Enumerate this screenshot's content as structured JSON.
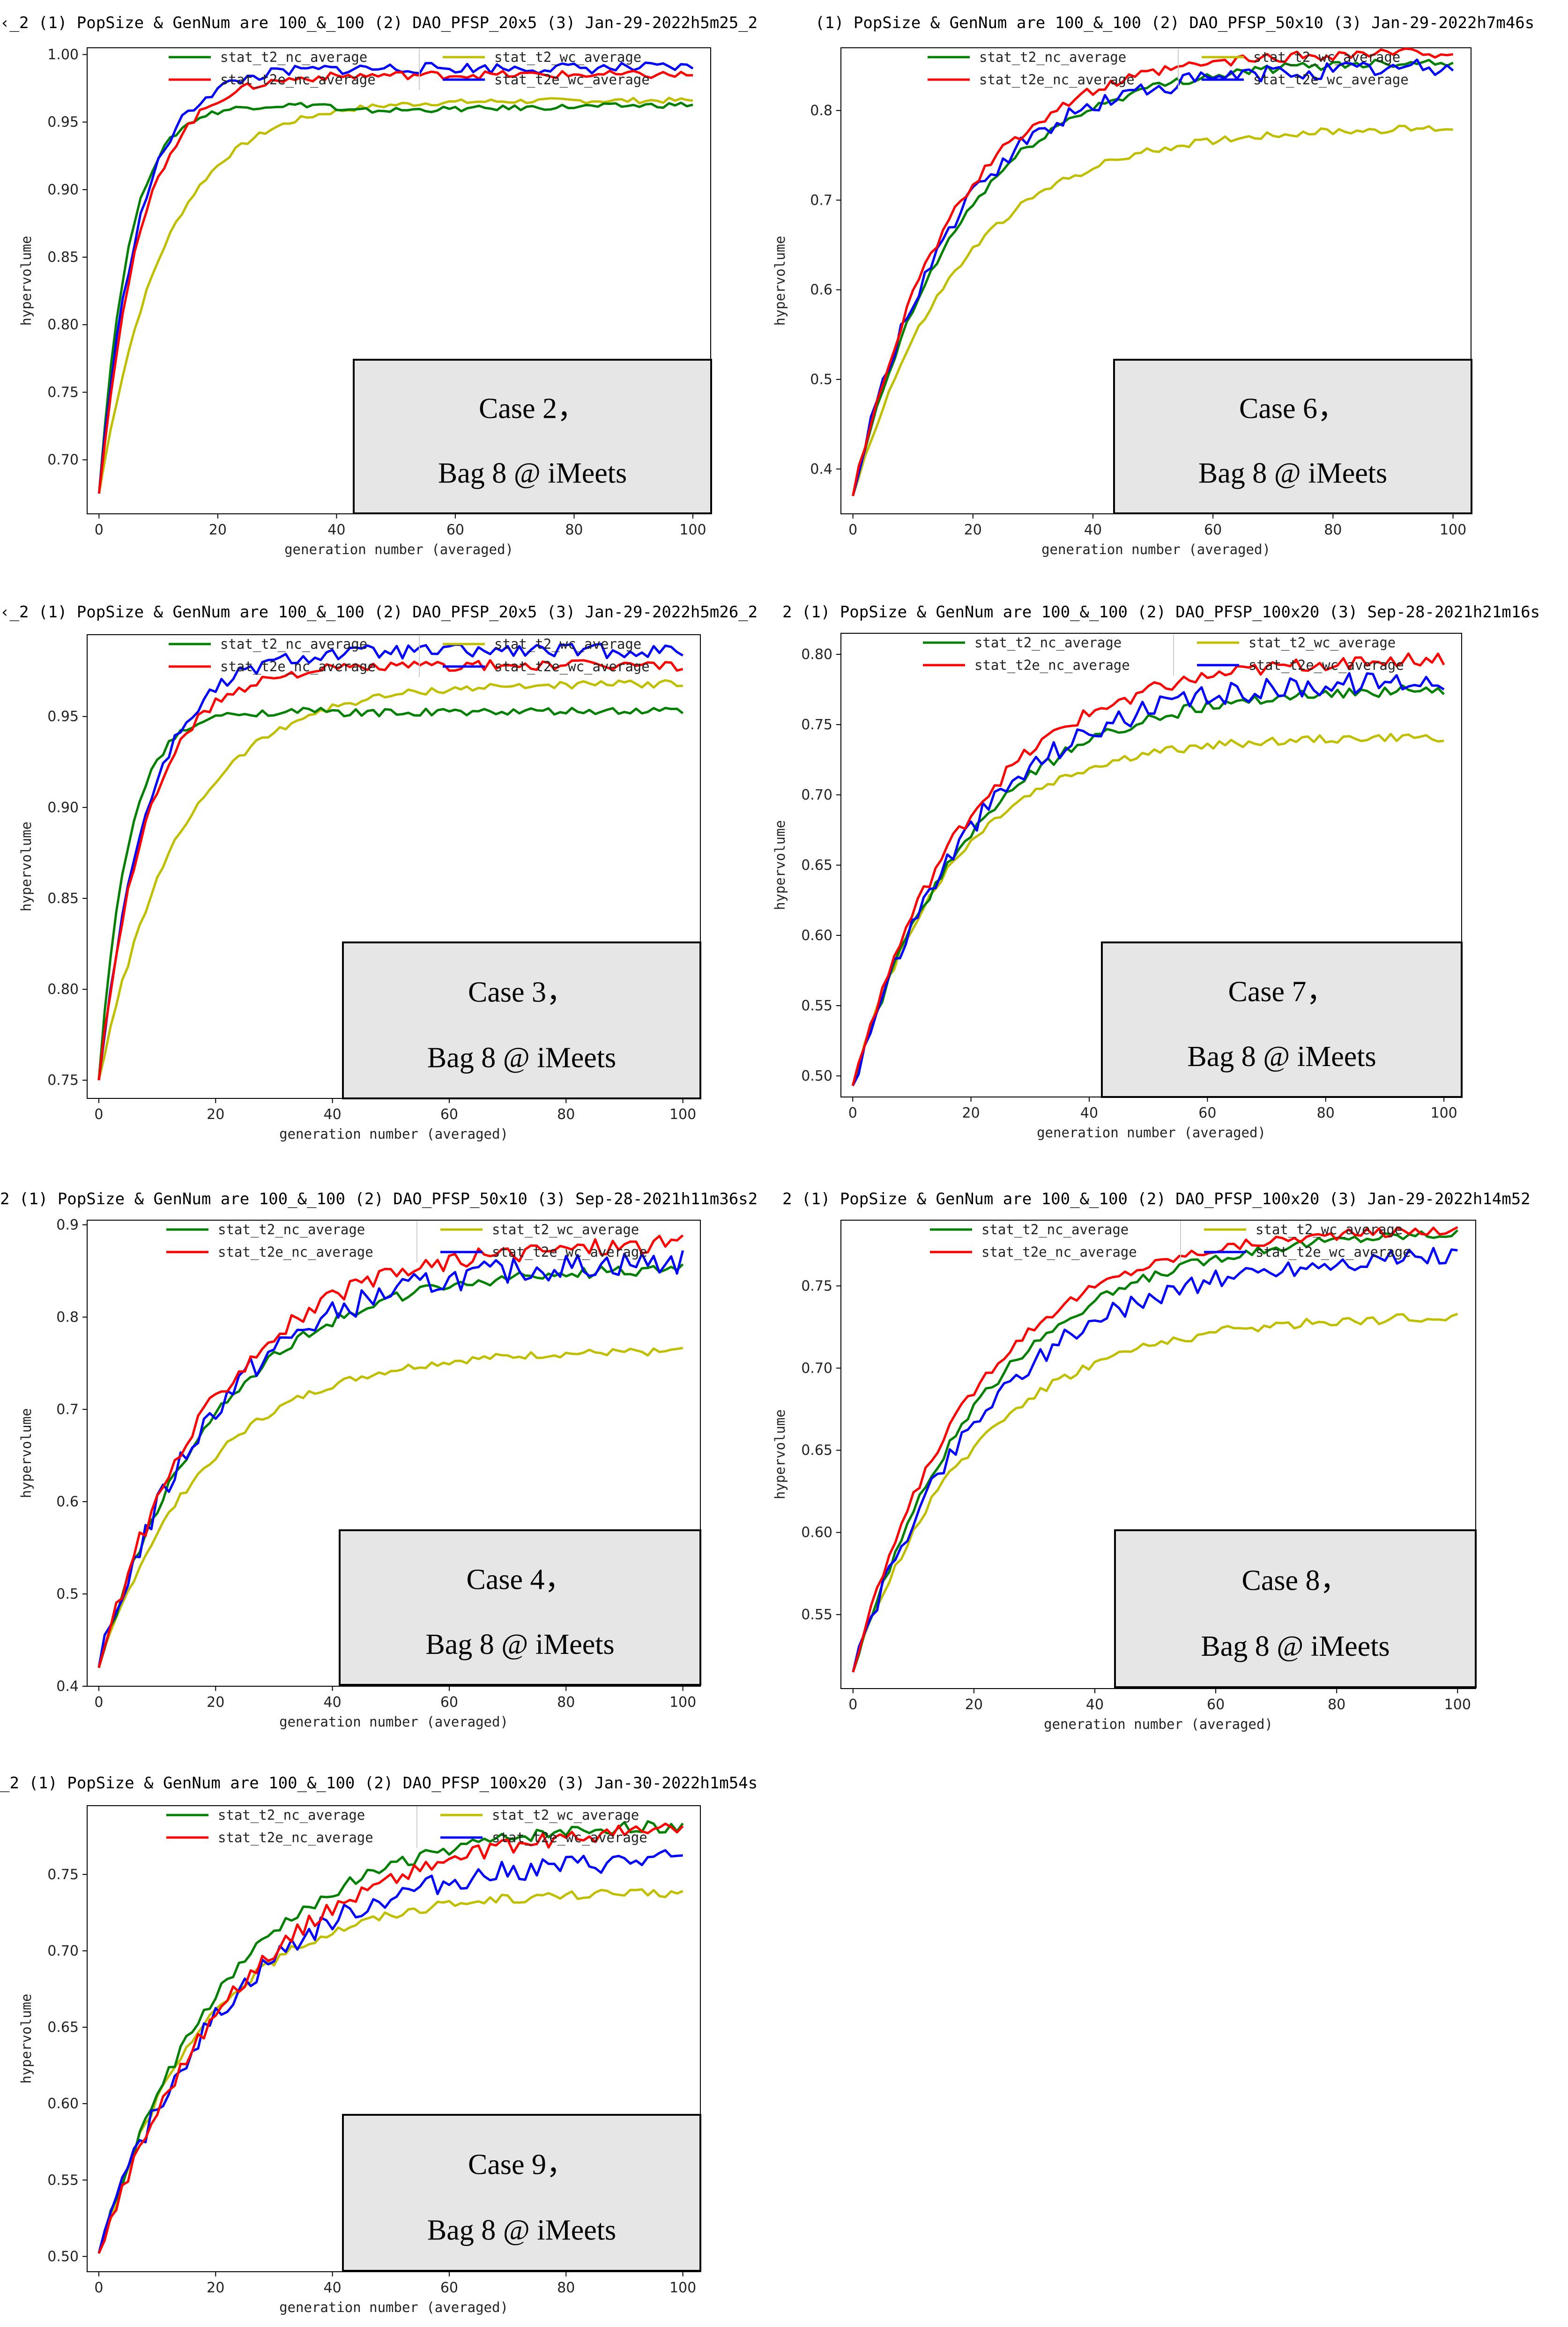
{
  "series_style": [
    {
      "name": "stat_t2_nc_average",
      "color": "#008000"
    },
    {
      "name": "stat_t2_wc_average",
      "color": "#bfbf00"
    },
    {
      "name": "stat_t2e_nc_average",
      "color": "#ff0000"
    },
    {
      "name": "stat_t2e_wc_average",
      "color": "#0000ff"
    }
  ],
  "chart_data": [
    {
      "type": "line",
      "id": "c2",
      "title": "‹_2 (1) PopSize & GenNum are 100_&_100 (2) DAO_PFSP_20x5 (3) Jan-29-2022h5m25_2",
      "xlabel": "generation number (averaged)",
      "ylabel": "hypervolume",
      "xlim": [
        -2,
        103
      ],
      "ylim": [
        0.66,
        1.005
      ],
      "xticks": [
        0,
        20,
        40,
        60,
        80,
        100
      ],
      "yticks": [
        0.7,
        0.75,
        0.8,
        0.85,
        0.9,
        0.95,
        1.0
      ],
      "ydec": 2,
      "annotation": {
        "line1": "Case 2，",
        "line2": "Bag 8 @ iMeets"
      },
      "series": [
        {
          "name": "stat_t2_nc_average",
          "start": 0.675,
          "end": 0.963,
          "k": 0.2,
          "noise": 0.002,
          "plateau_at": 40,
          "plateau": 0.958
        },
        {
          "name": "stat_t2_wc_average",
          "start": 0.675,
          "end": 0.966,
          "k": 0.09,
          "noise": 0.002
        },
        {
          "name": "stat_t2e_nc_average",
          "start": 0.675,
          "end": 0.985,
          "k": 0.14,
          "noise": 0.003
        },
        {
          "name": "stat_t2e_wc_average",
          "start": 0.675,
          "end": 0.99,
          "k": 0.15,
          "noise": 0.004
        }
      ]
    },
    {
      "type": "line",
      "id": "c6",
      "title": "(1) PopSize & GenNum are 100_&_100 (2) DAO_PFSP_50x10 (3) Jan-29-2022h7m46s",
      "xlabel": "generation number (averaged)",
      "ylabel": "hypervolume",
      "xlim": [
        -2,
        103
      ],
      "ylim": [
        0.35,
        0.87
      ],
      "xticks": [
        0,
        20,
        40,
        60,
        80,
        100
      ],
      "yticks": [
        0.4,
        0.5,
        0.6,
        0.7,
        0.8
      ],
      "ydec": 1,
      "annotation": {
        "line1": "Case 6，",
        "line2": "Bag 8 @ iMeets"
      },
      "series": [
        {
          "name": "stat_t2_nc_average",
          "start": 0.37,
          "end": 0.855,
          "k": 0.055,
          "noise": 0.005
        },
        {
          "name": "stat_t2_wc_average",
          "start": 0.37,
          "end": 0.78,
          "k": 0.055,
          "noise": 0.004
        },
        {
          "name": "stat_t2e_nc_average",
          "start": 0.37,
          "end": 0.865,
          "k": 0.06,
          "noise": 0.006
        },
        {
          "name": "stat_t2e_wc_average",
          "start": 0.37,
          "end": 0.848,
          "k": 0.06,
          "noise": 0.01
        }
      ]
    },
    {
      "type": "line",
      "id": "c3",
      "title": "‹_2 (1) PopSize & GenNum are 100_&_100 (2) DAO_PFSP_20x5 (3) Jan-29-2022h5m26_2",
      "xlabel": "generation number (averaged)",
      "ylabel": "hypervolume",
      "xlim": [
        -2,
        103
      ],
      "ylim": [
        0.74,
        0.995
      ],
      "xticks": [
        0,
        20,
        40,
        60,
        80,
        100
      ],
      "yticks": [
        0.75,
        0.8,
        0.85,
        0.9,
        0.95
      ],
      "ydec": 2,
      "annotation": {
        "line1": "Case 3，",
        "line2": "Bag 8 @ iMeets"
      },
      "series": [
        {
          "name": "stat_t2_nc_average",
          "start": 0.75,
          "end": 0.953,
          "k": 0.2,
          "noise": 0.002,
          "plateau_at": 40,
          "plateau": 0.952
        },
        {
          "name": "stat_t2_wc_average",
          "start": 0.75,
          "end": 0.968,
          "k": 0.07,
          "noise": 0.002
        },
        {
          "name": "stat_t2e_nc_average",
          "start": 0.75,
          "end": 0.978,
          "k": 0.12,
          "noise": 0.003
        },
        {
          "name": "stat_t2e_wc_average",
          "start": 0.75,
          "end": 0.986,
          "k": 0.12,
          "noise": 0.004
        }
      ]
    },
    {
      "type": "line",
      "id": "c7",
      "title": "2 (1) PopSize & GenNum are 100_&_100 (2) DAO_PFSP_100x20 (3) Sep-28-2021h21m16s",
      "xlabel": "generation number (averaged)",
      "ylabel": "hypervolume",
      "xlim": [
        -2,
        103
      ],
      "ylim": [
        0.485,
        0.815
      ],
      "xticks": [
        0,
        20,
        40,
        60,
        80,
        100
      ],
      "yticks": [
        0.5,
        0.55,
        0.6,
        0.65,
        0.7,
        0.75,
        0.8
      ],
      "ydec": 2,
      "annotation": {
        "line1": "Case 7，",
        "line2": "Bag 8 @ iMeets"
      },
      "series": [
        {
          "name": "stat_t2_nc_average",
          "start": 0.493,
          "end": 0.775,
          "k": 0.05,
          "noise": 0.004
        },
        {
          "name": "stat_t2_wc_average",
          "start": 0.493,
          "end": 0.741,
          "k": 0.06,
          "noise": 0.003
        },
        {
          "name": "stat_t2e_nc_average",
          "start": 0.493,
          "end": 0.797,
          "k": 0.05,
          "noise": 0.005
        },
        {
          "name": "stat_t2e_wc_average",
          "start": 0.493,
          "end": 0.782,
          "k": 0.05,
          "noise": 0.008
        }
      ]
    },
    {
      "type": "line",
      "id": "c4",
      "title": "2 (1) PopSize & GenNum are 100_&_100 (2) DAO_PFSP_50x10 (3) Sep-28-2021h11m36s2",
      "xlabel": "generation number (averaged)",
      "ylabel": "hypervolume",
      "xlim": [
        -2,
        103
      ],
      "ylim": [
        0.4,
        0.905
      ],
      "xticks": [
        0,
        20,
        40,
        60,
        80,
        100
      ],
      "yticks": [
        0.4,
        0.5,
        0.6,
        0.7,
        0.8,
        0.9
      ],
      "ydec": 1,
      "annotation": {
        "line1": "Case 4，",
        "line2": "Bag 8 @ iMeets"
      },
      "series": [
        {
          "name": "stat_t2_nc_average",
          "start": 0.42,
          "end": 0.852,
          "k": 0.05,
          "noise": 0.006
        },
        {
          "name": "stat_t2_wc_average",
          "start": 0.42,
          "end": 0.763,
          "k": 0.055,
          "noise": 0.004
        },
        {
          "name": "stat_t2e_nc_average",
          "start": 0.42,
          "end": 0.88,
          "k": 0.05,
          "noise": 0.01
        },
        {
          "name": "stat_t2e_wc_average",
          "start": 0.42,
          "end": 0.86,
          "k": 0.05,
          "noise": 0.014
        }
      ]
    },
    {
      "type": "line",
      "id": "c8",
      "title": "2 (1) PopSize & GenNum are 100_&_100 (2) DAO_PFSP_100x20 (3) Jan-29-2022h14m52",
      "xlabel": "generation number (averaged)",
      "ylabel": "hypervolume",
      "xlim": [
        -2,
        103
      ],
      "ylim": [
        0.505,
        0.79
      ],
      "xticks": [
        0,
        20,
        40,
        60,
        80,
        100
      ],
      "yticks": [
        0.55,
        0.6,
        0.65,
        0.7,
        0.75
      ],
      "ydec": 2,
      "annotation": {
        "line1": "Case 8，",
        "line2": "Bag 8 @ iMeets"
      },
      "series": [
        {
          "name": "stat_t2_nc_average",
          "start": 0.515,
          "end": 0.782,
          "k": 0.045,
          "noise": 0.003
        },
        {
          "name": "stat_t2_wc_average",
          "start": 0.515,
          "end": 0.731,
          "k": 0.05,
          "noise": 0.003
        },
        {
          "name": "stat_t2e_nc_average",
          "start": 0.515,
          "end": 0.784,
          "k": 0.05,
          "noise": 0.003
        },
        {
          "name": "stat_t2e_wc_average",
          "start": 0.515,
          "end": 0.768,
          "k": 0.045,
          "noise": 0.006
        }
      ]
    },
    {
      "type": "line",
      "id": "c9",
      "title": "_2 (1) PopSize & GenNum are 100_&_100 (2) DAO_PFSP_100x20 (3) Jan-30-2022h1m54s",
      "xlabel": "generation number (averaged)",
      "ylabel": "hypervolume",
      "xlim": [
        -2,
        103
      ],
      "ylim": [
        0.49,
        0.795
      ],
      "xticks": [
        0,
        20,
        40,
        60,
        80,
        100
      ],
      "yticks": [
        0.5,
        0.55,
        0.6,
        0.65,
        0.7,
        0.75
      ],
      "ydec": 2,
      "annotation": {
        "line1": "Case 9，",
        "line2": "Bag 8 @ iMeets"
      },
      "series": [
        {
          "name": "stat_t2_nc_average",
          "start": 0.502,
          "end": 0.782,
          "k": 0.045,
          "noise": 0.004
        },
        {
          "name": "stat_t2_wc_average",
          "start": 0.502,
          "end": 0.738,
          "k": 0.055,
          "noise": 0.003
        },
        {
          "name": "stat_t2e_nc_average",
          "start": 0.502,
          "end": 0.78,
          "k": 0.04,
          "noise": 0.005
        },
        {
          "name": "stat_t2e_wc_average",
          "start": 0.502,
          "end": 0.76,
          "k": 0.045,
          "noise": 0.007
        }
      ]
    }
  ]
}
